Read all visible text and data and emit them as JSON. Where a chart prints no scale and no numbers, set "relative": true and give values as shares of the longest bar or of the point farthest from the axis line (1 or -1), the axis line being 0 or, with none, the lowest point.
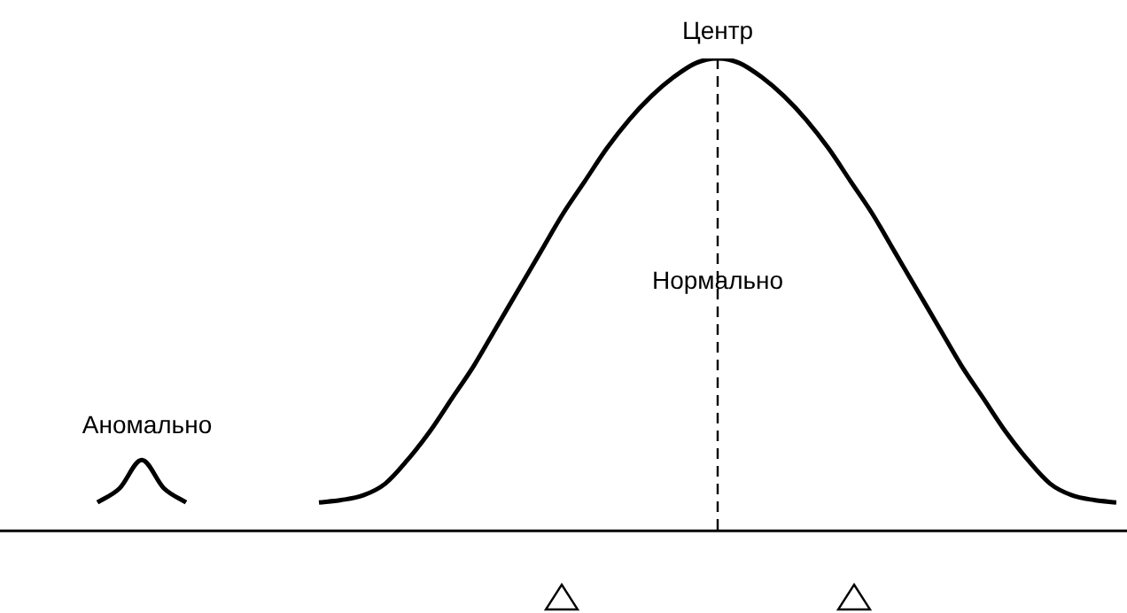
{
  "chart_data": {
    "type": "line",
    "relative": true,
    "categories": [
      null,
      null,
      null,
      null,
      null,
      null,
      null,
      null,
      null,
      null,
      null,
      null,
      null,
      null,
      null,
      null,
      null,
      null,
      null,
      null,
      null,
      null,
      null,
      null,
      null,
      null,
      null,
      null,
      null,
      null,
      null,
      null,
      null,
      null,
      null,
      null,
      null,
      null,
      null,
      null,
      null,
      null,
      null,
      null,
      null,
      null,
      null,
      null,
      null,
      null,
      null
    ],
    "series": [
      {
        "color": "#000000",
        "values": [
          null,
          null,
          null,
          null,
          0.06,
          0.09,
          0.15,
          0.09,
          0.06,
          null,
          null,
          null,
          null,
          null,
          null,
          null,
          null,
          null,
          null,
          null,
          null,
          null,
          null,
          null,
          null,
          null,
          null,
          null,
          null,
          null,
          null,
          null,
          null,
          null,
          null,
          null,
          null,
          null,
          null,
          null,
          null,
          null,
          null,
          null,
          null,
          null,
          null,
          null,
          null,
          null,
          null
        ]
      },
      {
        "color": "#000000",
        "values": [
          null,
          null,
          null,
          null,
          null,
          null,
          null,
          null,
          null,
          null,
          null,
          null,
          null,
          null,
          0.06,
          0.065,
          0.075,
          0.1,
          0.15,
          0.21,
          0.28,
          0.35,
          0.43,
          0.51,
          0.59,
          0.67,
          0.74,
          0.81,
          0.87,
          0.92,
          0.96,
          0.99,
          1,
          0.99,
          0.96,
          0.92,
          0.87,
          0.81,
          0.74,
          0.67,
          0.59,
          0.51,
          0.43,
          0.35,
          0.28,
          0.21,
          0.15,
          0.1,
          0.075,
          0.065,
          0.06
        ]
      }
    ],
    "annotations": [
      "Аномально",
      "Нормально",
      "Центр"
    ],
    "grid": false,
    "legend": false,
    "marker": "none",
    "line_style": "solid"
  }
}
